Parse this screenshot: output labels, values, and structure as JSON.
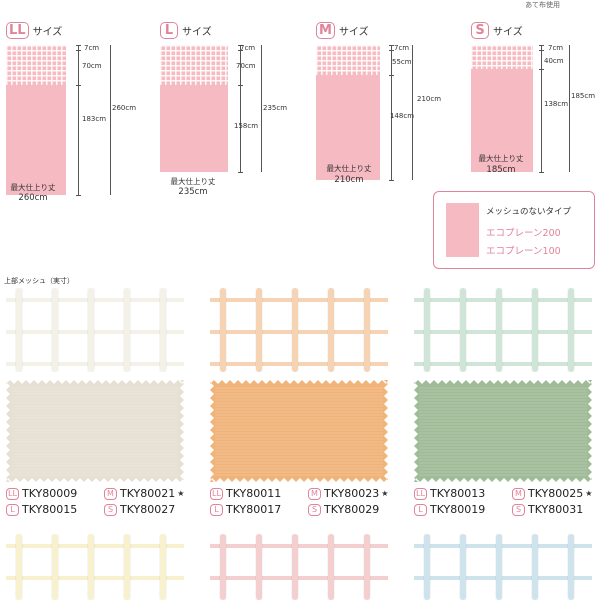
{
  "top_note": "あて布使用",
  "sizes": [
    {
      "badge": "LL",
      "word": "サイズ",
      "mesh_dim": "70cm",
      "panel_dim": "183cm",
      "top_dim": "7cm",
      "total_dim": "260cm",
      "max_label": "最大仕上り丈",
      "max_value": "260cm"
    },
    {
      "badge": "L",
      "word": "サイズ",
      "mesh_dim": "70cm",
      "panel_dim": "158cm",
      "top_dim": "7cm",
      "total_dim": "235cm",
      "max_label": "最大仕上り丈",
      "max_value": "235cm"
    },
    {
      "badge": "M",
      "word": "サイズ",
      "mesh_dim": "55cm",
      "panel_dim": "148cm",
      "top_dim": "7cm",
      "total_dim": "210cm",
      "max_label": "最大仕上り丈",
      "max_value": "210cm"
    },
    {
      "badge": "S",
      "word": "サイズ",
      "mesh_dim": "40cm",
      "panel_dim": "138cm",
      "top_dim": "7cm",
      "total_dim": "185cm",
      "max_label": "最大仕上り丈",
      "max_value": "185cm"
    }
  ],
  "legend": {
    "title": "メッシュのないタイプ",
    "items": [
      "エコプレーン200",
      "エコプレーン100"
    ]
  },
  "section_label": "上部メッシュ（実寸）",
  "swatches": [
    {
      "mesh_color": "#f4f1e8",
      "fabric_color": "#e6e0d3",
      "codes": [
        {
          "badge": "LL",
          "code": "TKY80009",
          "star": ""
        },
        {
          "badge": "M",
          "code": "TKY80021",
          "star": "★"
        },
        {
          "badge": "L",
          "code": "TKY80015",
          "star": ""
        },
        {
          "badge": "S",
          "code": "TKY80027",
          "star": ""
        }
      ]
    },
    {
      "mesh_color": "#f6d3b3",
      "fabric_color": "#f0b37a",
      "codes": [
        {
          "badge": "LL",
          "code": "TKY80011",
          "star": ""
        },
        {
          "badge": "M",
          "code": "TKY80023",
          "star": "★"
        },
        {
          "badge": "L",
          "code": "TKY80017",
          "star": ""
        },
        {
          "badge": "S",
          "code": "TKY80029",
          "star": ""
        }
      ]
    },
    {
      "mesh_color": "#cfe5d8",
      "fabric_color": "#9fbb98",
      "codes": [
        {
          "badge": "LL",
          "code": "TKY80013",
          "star": ""
        },
        {
          "badge": "M",
          "code": "TKY80025",
          "star": "★"
        },
        {
          "badge": "L",
          "code": "TKY80019",
          "star": ""
        },
        {
          "badge": "S",
          "code": "TKY80031",
          "star": ""
        }
      ]
    }
  ],
  "bottom_mesh_colors": [
    "#f7f1cf",
    "#f4cfcf",
    "#cfe3ec"
  ]
}
